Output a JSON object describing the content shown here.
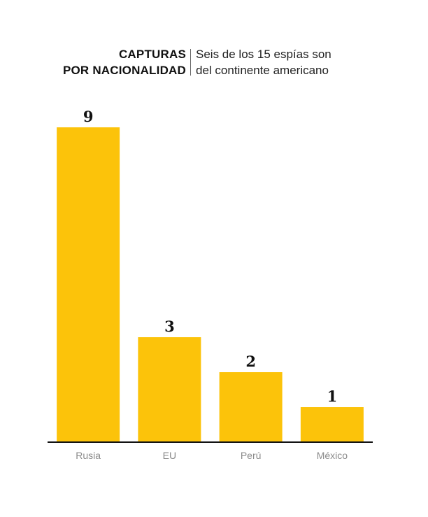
{
  "header": {
    "title_line1": "CAPTURAS",
    "title_line2": "POR NACIONALIDAD",
    "subtitle_line1": "Seis de los 15 espías son",
    "subtitle_line2": "del continente americano"
  },
  "colors": {
    "bar": "#FCC30A",
    "baseline": "#111111"
  },
  "chart_data": {
    "type": "bar",
    "title": "CAPTURAS POR NACIONALIDAD",
    "subtitle": "Seis de los 15 espías son del continente americano",
    "categories": [
      "Rusia",
      "EU",
      "Perú",
      "México"
    ],
    "values": [
      9,
      3,
      2,
      1
    ],
    "data_labels": [
      "9",
      "3",
      "2",
      "1"
    ],
    "xlabel": "",
    "ylabel": "",
    "ylim": [
      0,
      9
    ],
    "grid": false,
    "legend": "none"
  }
}
